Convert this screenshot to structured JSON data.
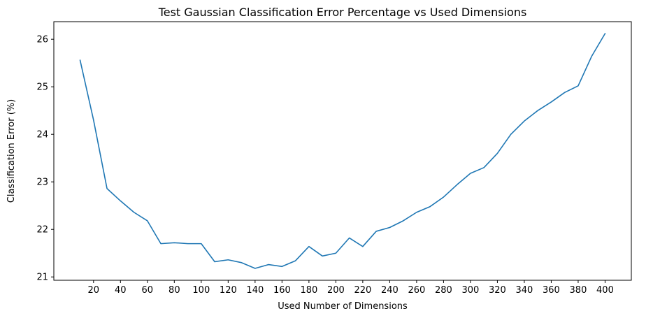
{
  "chart_data": {
    "type": "line",
    "title": "Test Gaussian Classification Error Percentage vs Used Dimensions",
    "xlabel": "Used Number of Dimensions",
    "ylabel": "Classification Error (%)",
    "xlim": [
      -9.5,
      419.5
    ],
    "ylim": [
      20.93,
      26.37
    ],
    "xticks": [
      20,
      40,
      60,
      80,
      100,
      120,
      140,
      160,
      180,
      200,
      220,
      240,
      260,
      280,
      300,
      320,
      340,
      360,
      380,
      400
    ],
    "yticks": [
      21,
      22,
      23,
      24,
      25,
      26
    ],
    "grid": false,
    "legend": "none",
    "series": [
      {
        "color": "#1f77b4",
        "x": [
          10,
          20,
          30,
          40,
          50,
          60,
          70,
          80,
          90,
          100,
          110,
          120,
          130,
          140,
          150,
          160,
          170,
          180,
          190,
          200,
          210,
          220,
          230,
          240,
          250,
          260,
          270,
          280,
          290,
          300,
          310,
          320,
          330,
          340,
          350,
          360,
          370,
          380,
          390,
          400
        ],
        "y": [
          25.56,
          24.3,
          22.86,
          22.6,
          22.36,
          22.18,
          21.7,
          21.72,
          21.7,
          21.7,
          21.32,
          21.36,
          21.3,
          21.18,
          21.26,
          21.22,
          21.34,
          21.64,
          21.44,
          21.5,
          21.82,
          21.64,
          21.96,
          22.04,
          22.18,
          22.36,
          22.48,
          22.68,
          22.94,
          23.18,
          23.3,
          23.6,
          24.0,
          24.28,
          24.5,
          24.68,
          24.88,
          25.02,
          25.64,
          26.12
        ]
      }
    ]
  }
}
